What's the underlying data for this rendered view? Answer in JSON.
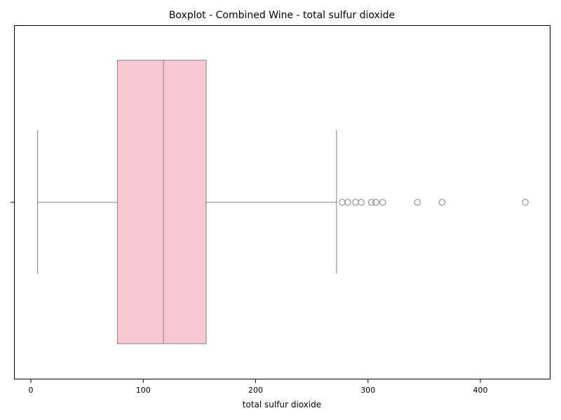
{
  "chart_data": {
    "type": "boxplot",
    "orientation": "horizontal",
    "title": "Boxplot - Combined Wine - total sulfur dioxide",
    "xlabel": "total sulfur dioxide",
    "ylabel": "",
    "xlim": [
      -15,
      460
    ],
    "x_ticks": [
      0,
      100,
      200,
      300,
      400
    ],
    "grid": false,
    "box": {
      "whisker_low": 6,
      "q1": 77,
      "median": 118,
      "q3": 156,
      "whisker_high": 272
    },
    "outliers": [
      277,
      282,
      289,
      294,
      303,
      307,
      313,
      344,
      366,
      440
    ],
    "colors": {
      "box_fill": "#f8c8d2",
      "line": "#808080",
      "axis": "#000000"
    }
  }
}
